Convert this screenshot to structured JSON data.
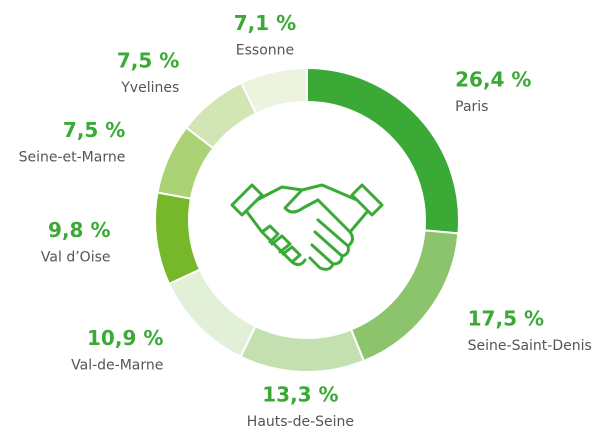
{
  "chart_data": {
    "type": "donut",
    "categories": [
      "Paris",
      "Seine-Saint-Denis",
      "Hauts-de-Seine",
      "Val-de-Marne",
      "Val d’Oise",
      "Seine-et-Marne",
      "Yvelines",
      "Essonne"
    ],
    "values": [
      26.4,
      17.5,
      13.3,
      10.9,
      9.8,
      7.5,
      7.5,
      7.1
    ],
    "value_labels": [
      "26,4 %",
      "17,5 %",
      "13,3 %",
      "10,9 %",
      "9,8 %",
      "7,5 %",
      "7,5 %",
      "7,1 %"
    ],
    "colors": [
      "#3aa935",
      "#8cc46d",
      "#c5e0b0",
      "#e3f0d8",
      "#77b82a",
      "#abd274",
      "#d1e6b4",
      "#ecf4e0"
    ]
  }
}
